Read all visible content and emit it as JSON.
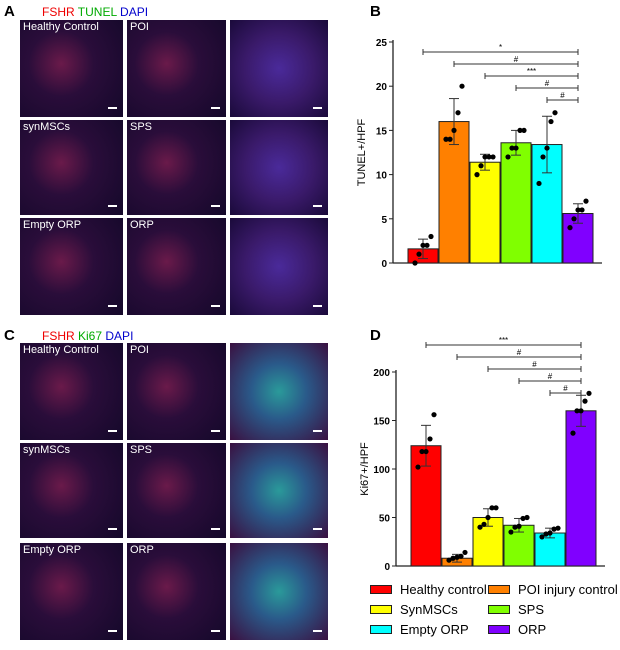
{
  "panels": {
    "a": "A",
    "b": "B",
    "c": "C",
    "d": "D"
  },
  "stain_a": {
    "s1": "FSHR",
    "s2": "TUNEL",
    "s3": "DAPI"
  },
  "stain_c": {
    "s1": "FSHR",
    "s2": "Ki67",
    "s3": "DAPI"
  },
  "images_a": [
    [
      "Healthy Control",
      "POI",
      ""
    ],
    [
      "synMSCs",
      "SPS",
      ""
    ],
    [
      "Empty ORP",
      "ORP",
      ""
    ]
  ],
  "images_c": [
    [
      "Healthy Control",
      "POI",
      ""
    ],
    [
      "synMSCs",
      "SPS",
      ""
    ],
    [
      "Empty ORP",
      "ORP",
      ""
    ]
  ],
  "colors": [
    "#ff0000",
    "#ff8000",
    "#ffff00",
    "#80ff00",
    "#00ffff",
    "#8000ff"
  ],
  "legend": [
    "Healthy control",
    "POI injury control",
    "SynMSCs",
    "SPS",
    "Empty ORP",
    "ORP"
  ],
  "chart_data": [
    {
      "type": "bar",
      "panel": "B",
      "ylabel": "TUNEL+/HPF",
      "ylim": [
        0,
        25
      ],
      "yticks": [
        "0",
        "5",
        "10",
        "15",
        "20",
        "25"
      ],
      "categories": [
        "Healthy control",
        "POI injury control",
        "SynMSCs",
        "SPS",
        "Empty ORP",
        "ORP"
      ],
      "values": [
        1.6,
        16,
        11.4,
        13.6,
        13.4,
        5.6
      ],
      "errors": [
        1.1,
        2.6,
        0.9,
        1.4,
        3.2,
        1.1
      ],
      "points": [
        [
          0,
          1,
          2,
          2,
          3
        ],
        [
          14,
          14,
          15,
          17,
          20
        ],
        [
          10,
          11,
          12,
          12,
          12
        ],
        [
          12,
          13,
          13,
          15,
          15
        ],
        [
          9,
          12,
          13,
          16,
          17
        ],
        [
          4,
          5,
          6,
          6,
          7
        ]
      ],
      "significance": [
        {
          "from": 0,
          "to": 5,
          "label": "*"
        },
        {
          "from": 1,
          "to": 5,
          "label": "#"
        },
        {
          "from": 2,
          "to": 5,
          "label": "***"
        },
        {
          "from": 3,
          "to": 5,
          "label": "#"
        },
        {
          "from": 4,
          "to": 5,
          "label": "#"
        }
      ]
    },
    {
      "type": "bar",
      "panel": "D",
      "ylabel": "Ki67+/HPF",
      "ylim": [
        0,
        200
      ],
      "yticks": [
        "0",
        "50",
        "100",
        "150",
        "200"
      ],
      "categories": [
        "Healthy control",
        "POI injury control",
        "SynMSCs",
        "SPS",
        "Empty ORP",
        "ORP"
      ],
      "values": [
        124,
        8,
        50,
        42,
        34,
        160
      ],
      "errors": [
        21,
        4,
        9,
        7,
        5,
        16
      ],
      "points": [
        [
          102,
          118,
          118,
          131,
          156
        ],
        [
          6,
          8,
          9,
          10,
          14
        ],
        [
          40,
          43,
          50,
          60,
          60
        ],
        [
          35,
          40,
          41,
          49,
          50
        ],
        [
          30,
          33,
          34,
          38,
          39
        ],
        [
          137,
          160,
          160,
          170,
          178
        ]
      ],
      "significance": [
        {
          "from": 0,
          "to": 5,
          "label": "***"
        },
        {
          "from": 1,
          "to": 5,
          "label": "#"
        },
        {
          "from": 2,
          "to": 5,
          "label": "#"
        },
        {
          "from": 3,
          "to": 5,
          "label": "#"
        },
        {
          "from": 4,
          "to": 5,
          "label": "#"
        }
      ]
    }
  ]
}
